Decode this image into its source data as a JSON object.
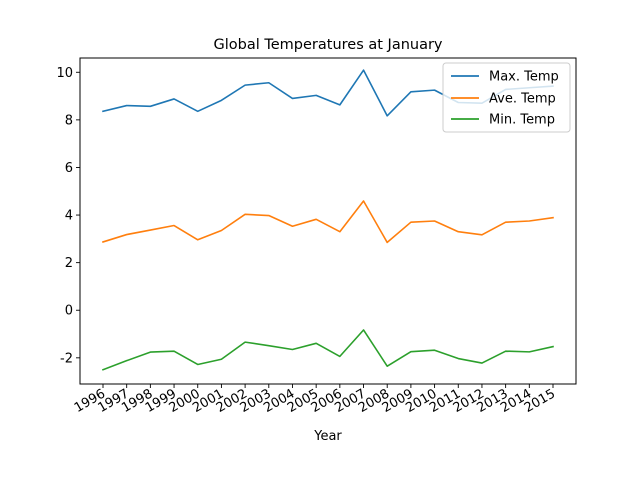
{
  "chart_data": {
    "type": "line",
    "title": "Global Temperatures at January",
    "xlabel": "Year",
    "ylabel": "",
    "categories": [
      "1996",
      "1997",
      "1998",
      "1999",
      "2000",
      "2001",
      "2002",
      "2003",
      "2004",
      "2005",
      "2006",
      "2007",
      "2008",
      "2009",
      "2010",
      "2011",
      "2012",
      "2013",
      "2014",
      "2015"
    ],
    "ylim": [
      -3.1,
      10.6
    ],
    "yticks": [
      -2,
      0,
      2,
      4,
      6,
      8,
      10
    ],
    "legend_position": "top-right",
    "grid": false,
    "series": [
      {
        "name": "Max. Temp",
        "color": "#1f77b4",
        "values": [
          8.36,
          8.6,
          8.57,
          8.88,
          8.36,
          8.82,
          9.46,
          9.56,
          8.9,
          9.03,
          8.63,
          10.09,
          8.17,
          9.18,
          9.25,
          8.73,
          8.7,
          9.28,
          9.35,
          9.42
        ]
      },
      {
        "name": "Ave. Temp",
        "color": "#ff7f0e",
        "values": [
          2.87,
          3.18,
          3.37,
          3.56,
          2.96,
          3.35,
          4.03,
          3.98,
          3.53,
          3.82,
          3.3,
          4.59,
          2.85,
          3.7,
          3.75,
          3.3,
          3.17,
          3.7,
          3.75,
          3.89
        ]
      },
      {
        "name": "Min. Temp",
        "color": "#2ca02c",
        "values": [
          -2.5,
          -2.12,
          -1.76,
          -1.72,
          -2.28,
          -2.06,
          -1.34,
          -1.49,
          -1.65,
          -1.39,
          -1.94,
          -0.83,
          -2.35,
          -1.74,
          -1.68,
          -2.03,
          -2.22,
          -1.72,
          -1.75,
          -1.53
        ]
      }
    ]
  }
}
